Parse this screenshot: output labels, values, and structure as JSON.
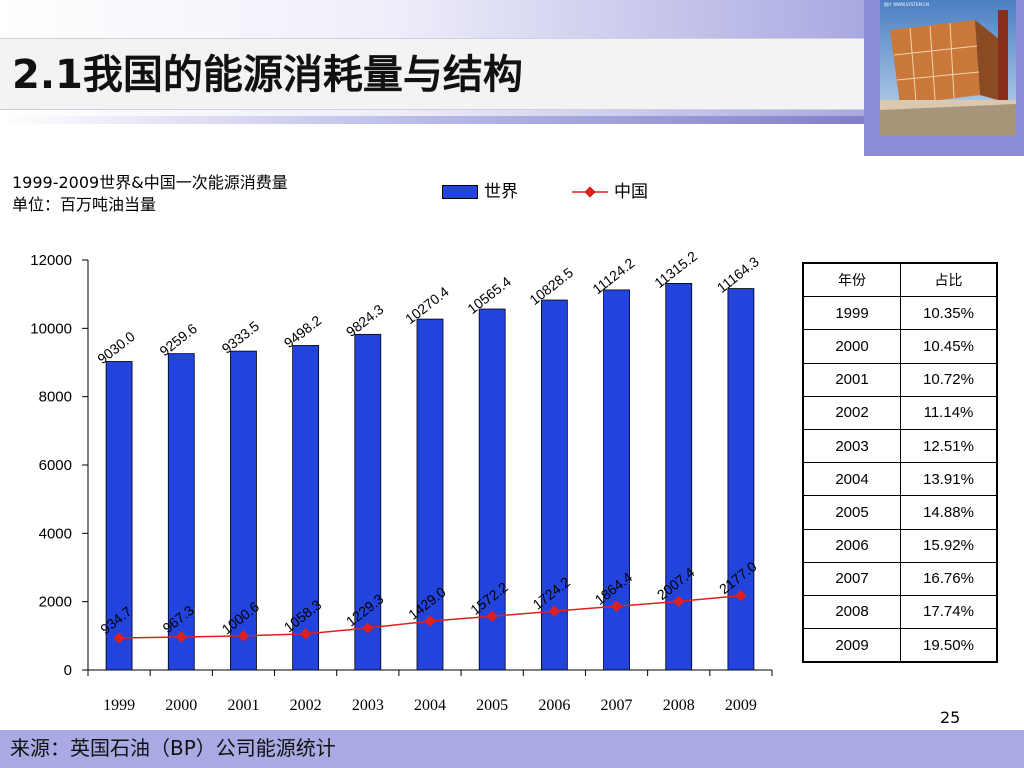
{
  "slide": {
    "title": "2.1我国的能源消耗量与结构",
    "page_number": "25",
    "source": "来源：英国石油（BP）公司能源统计",
    "photo_caption": "图片 WWW.SYSTEM.CN"
  },
  "chart_data": {
    "type": "bar",
    "title": "1999-2009世界&中国一次能源消费量",
    "subtitle": "单位：百万吨油当量",
    "categories": [
      "1999",
      "2000",
      "2001",
      "2002",
      "2003",
      "2004",
      "2005",
      "2006",
      "2007",
      "2008",
      "2009"
    ],
    "series": [
      {
        "name": "世界",
        "type": "bar",
        "color": "#2244dd",
        "values": [
          9030.0,
          9259.6,
          9333.5,
          9498.2,
          9824.3,
          10270.4,
          10565.4,
          10828.5,
          11124.2,
          11315.2,
          11164.3
        ],
        "labels": [
          "9030.0",
          "9259.6",
          "9333.5",
          "9498.2",
          "9824.3",
          "10270.4",
          "10565.4",
          "10828.5",
          "11124.2",
          "11315.2",
          "11164.3"
        ]
      },
      {
        "name": "中国",
        "type": "line",
        "color": "#e0201c",
        "values": [
          934.7,
          967.3,
          1000.6,
          1058.3,
          1229.3,
          1429.0,
          1572.2,
          1724.2,
          1864.4,
          2007.4,
          2177.0
        ],
        "labels": [
          "934.7",
          "967.3",
          "1000.6",
          "1058.3",
          "1229.3",
          "1429.0",
          "1572.2",
          "1724.2",
          "1864.4",
          "2007.4",
          "2177.0"
        ]
      }
    ],
    "y_ticks": [
      "0",
      "2000",
      "4000",
      "6000",
      "8000",
      "10000",
      "12000"
    ],
    "ylim": [
      0,
      12000
    ],
    "grid": false,
    "legend_position": "top"
  },
  "table": {
    "headers": [
      "年份",
      "占比"
    ],
    "rows": [
      [
        "1999",
        "10.35%"
      ],
      [
        "2000",
        "10.45%"
      ],
      [
        "2001",
        "10.72%"
      ],
      [
        "2002",
        "11.14%"
      ],
      [
        "2003",
        "12.51%"
      ],
      [
        "2004",
        "13.91%"
      ],
      [
        "2005",
        "14.88%"
      ],
      [
        "2006",
        "15.92%"
      ],
      [
        "2007",
        "16.76%"
      ],
      [
        "2008",
        "17.74%"
      ],
      [
        "2009",
        "19.50%"
      ]
    ]
  }
}
